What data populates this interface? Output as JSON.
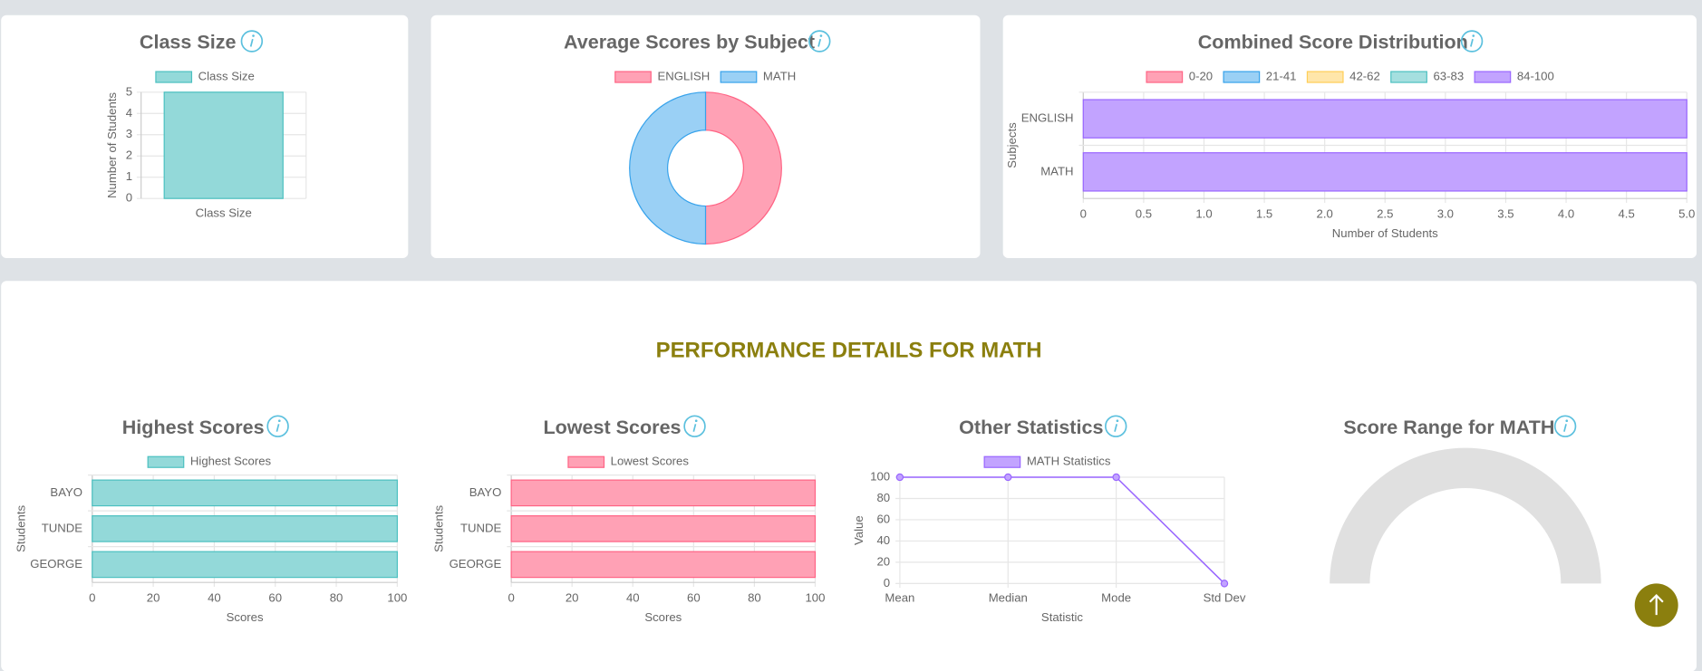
{
  "section_title": "PERFORMANCE DETAILS FOR MATH",
  "chart_data": [
    {
      "type": "bar",
      "title": "Class Size",
      "categories": [
        "Class Size"
      ],
      "series": [
        {
          "name": "Class Size",
          "color": "#93d9d9",
          "border_color": "#4bc0c0",
          "values": [
            5
          ]
        }
      ],
      "y_label": "Number of Students",
      "ylim": [
        0,
        5
      ],
      "yticks": [
        0,
        1,
        2,
        3,
        4,
        5
      ],
      "grid": true
    },
    {
      "type": "doughnut",
      "title": "Average Scores by Subject",
      "categories": [
        "ENGLISH",
        "MATH"
      ],
      "values": [
        100,
        100
      ],
      "colors": [
        "#ffa1b5",
        "#9ad0f5"
      ],
      "border_colors": [
        "#ff6384",
        "#36a2eb"
      ]
    },
    {
      "type": "bar",
      "horizontal": true,
      "stacked": true,
      "title": "Combined Score Distribution",
      "categories": [
        "ENGLISH",
        "MATH"
      ],
      "series": [
        {
          "name": "0-20",
          "color": "#ffa1b5",
          "border_color": "#ff6384",
          "values": [
            0,
            0
          ]
        },
        {
          "name": "21-41",
          "color": "#9ad0f5",
          "border_color": "#36a2eb",
          "values": [
            0,
            0
          ]
        },
        {
          "name": "42-62",
          "color": "#ffe6aa",
          "border_color": "#ffce56",
          "values": [
            0,
            0
          ]
        },
        {
          "name": "63-83",
          "color": "#a5dfdf",
          "border_color": "#4bc0c0",
          "values": [
            0,
            0
          ]
        },
        {
          "name": "84-100",
          "color": "#c2a3ff",
          "border_color": "#9966ff",
          "values": [
            5,
            5
          ]
        }
      ],
      "x_label": "Number of Students",
      "y_label": "Subjects",
      "xlim": [
        0,
        5
      ],
      "xticks": [
        0,
        0.5,
        {
          "value": 1,
          "label": "1.0"
        },
        1.5,
        {
          "value": 2,
          "label": "2.0"
        },
        2.5,
        {
          "value": 3,
          "label": "3.0"
        },
        3.5,
        {
          "value": 4,
          "label": "4.0"
        },
        4.5,
        {
          "value": 5,
          "label": "5.0"
        }
      ],
      "grid": true
    },
    {
      "type": "bar",
      "horizontal": true,
      "title": "Highest Scores",
      "categories": [
        "BAYO",
        "TUNDE",
        "GEORGE"
      ],
      "series": [
        {
          "name": "Highest Scores",
          "color": "#93d9d9",
          "border_color": "#4bc0c0",
          "values": [
            100,
            100,
            100
          ]
        }
      ],
      "x_label": "Scores",
      "y_label": "Students",
      "xlim": [
        0,
        100
      ],
      "xticks": [
        0,
        20,
        40,
        60,
        80,
        100
      ],
      "grid": true
    },
    {
      "type": "bar",
      "horizontal": true,
      "title": "Lowest Scores",
      "categories": [
        "BAYO",
        "TUNDE",
        "GEORGE"
      ],
      "series": [
        {
          "name": "Lowest Scores",
          "color": "#ffa1b5",
          "border_color": "#ff6384",
          "values": [
            100,
            100,
            100
          ]
        }
      ],
      "x_label": "Scores",
      "y_label": "Students",
      "xlim": [
        0,
        100
      ],
      "xticks": [
        0,
        20,
        40,
        60,
        80,
        100
      ],
      "grid": true
    },
    {
      "type": "line",
      "title": "Other Statistics",
      "categories": [
        "Mean",
        "Median",
        "Mode",
        "Std Dev"
      ],
      "series": [
        {
          "name": "MATH Statistics",
          "color": "#c2a3ff",
          "border_color": "#9966ff",
          "values": [
            100,
            100,
            100,
            0
          ]
        }
      ],
      "x_label": "Statistic",
      "y_label": "Value",
      "ylim": [
        0,
        100
      ],
      "yticks": [
        0,
        20,
        40,
        60,
        80,
        100
      ],
      "grid": true
    },
    {
      "type": "gauge",
      "title": "Score Range for MATH",
      "color": "#e0e0e0"
    }
  ]
}
